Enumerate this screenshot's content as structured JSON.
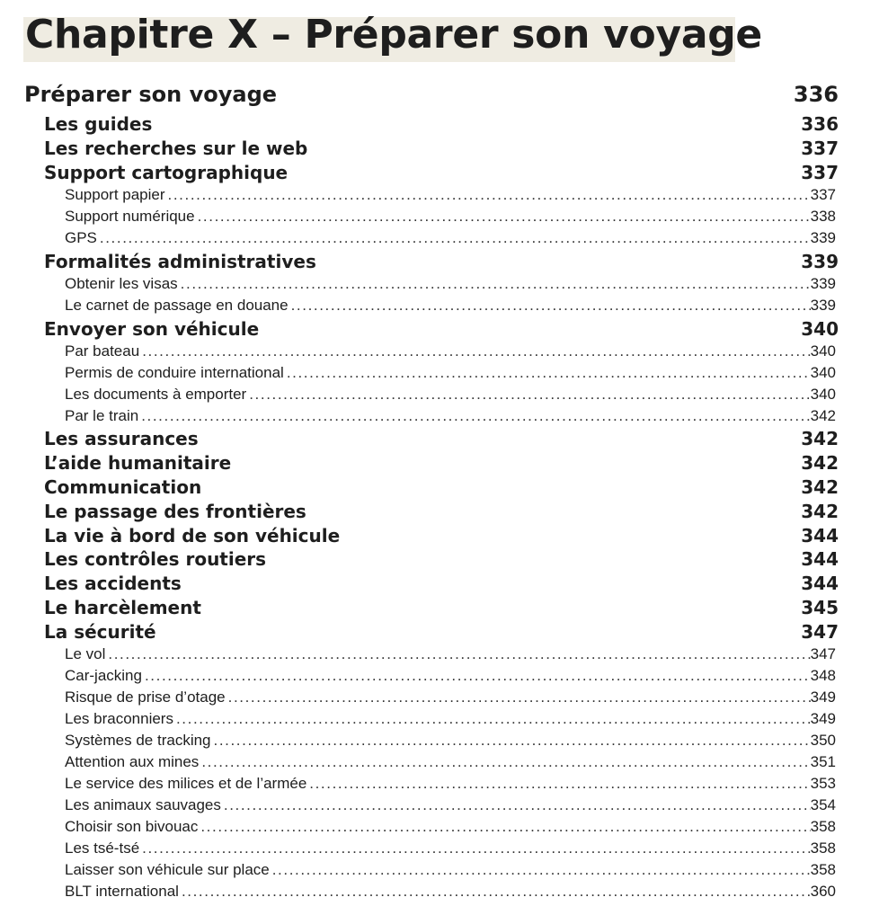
{
  "title": "Chapitre X – Préparer son voyage",
  "toc": [
    {
      "level": 1,
      "label": "Préparer son voyage",
      "page": "336"
    },
    {
      "level": 2,
      "label": "Les guides",
      "page": "336"
    },
    {
      "level": 2,
      "label": "Les recherches sur le web",
      "page": "337"
    },
    {
      "level": 2,
      "label": "Support cartographique",
      "page": "337"
    },
    {
      "level": 3,
      "label": "Support papier",
      "page": "337"
    },
    {
      "level": 3,
      "label": "Support numérique",
      "page": "338"
    },
    {
      "level": 3,
      "label": "GPS",
      "page": "339"
    },
    {
      "level": 2,
      "label": "Formalités administratives",
      "page": "339"
    },
    {
      "level": 3,
      "label": "Obtenir les visas",
      "page": "339"
    },
    {
      "level": 3,
      "label": "Le carnet de passage en douane",
      "page": "339"
    },
    {
      "level": 2,
      "label": "Envoyer son véhicule",
      "page": "340"
    },
    {
      "level": 3,
      "label": "Par bateau",
      "page": "340"
    },
    {
      "level": 3,
      "label": "Permis de conduire international",
      "page": "340"
    },
    {
      "level": 3,
      "label": "Les documents à emporter",
      "page": "340"
    },
    {
      "level": 3,
      "label": "Par le train",
      "page": "342"
    },
    {
      "level": 2,
      "label": "Les assurances",
      "page": "342"
    },
    {
      "level": 2,
      "label": "L’aide humanitaire",
      "page": "342"
    },
    {
      "level": 2,
      "label": "Communication",
      "page": "342"
    },
    {
      "level": 2,
      "label": "Le passage des frontières",
      "page": "342"
    },
    {
      "level": 2,
      "label": "La vie à bord de son véhicule",
      "page": "344"
    },
    {
      "level": 2,
      "label": "Les contrôles routiers",
      "page": "344"
    },
    {
      "level": 2,
      "label": "Les accidents",
      "page": "344"
    },
    {
      "level": 2,
      "label": "Le harcèlement",
      "page": "345"
    },
    {
      "level": 2,
      "label": "La sécurité",
      "page": "347"
    },
    {
      "level": 3,
      "label": "Le vol",
      "page": "347"
    },
    {
      "level": 3,
      "label": "Car-jacking",
      "page": "348"
    },
    {
      "level": 3,
      "label": "Risque de prise d’otage",
      "page": "349"
    },
    {
      "level": 3,
      "label": "Les braconniers",
      "page": "349"
    },
    {
      "level": 3,
      "label": "Systèmes de tracking",
      "page": "350"
    },
    {
      "level": 3,
      "label": "Attention aux mines",
      "page": "351"
    },
    {
      "level": 3,
      "label": "Le service des milices et de l’armée",
      "page": "353"
    },
    {
      "level": 3,
      "label": "Les animaux sauvages",
      "page": "354"
    },
    {
      "level": 3,
      "label": "Choisir son bivouac",
      "page": "358"
    },
    {
      "level": 3,
      "label": "Les tsé-tsé",
      "page": "358"
    },
    {
      "level": 3,
      "label": "Laisser son véhicule sur place",
      "page": "358"
    },
    {
      "level": 3,
      "label": "BLT international",
      "page": "360"
    }
  ]
}
